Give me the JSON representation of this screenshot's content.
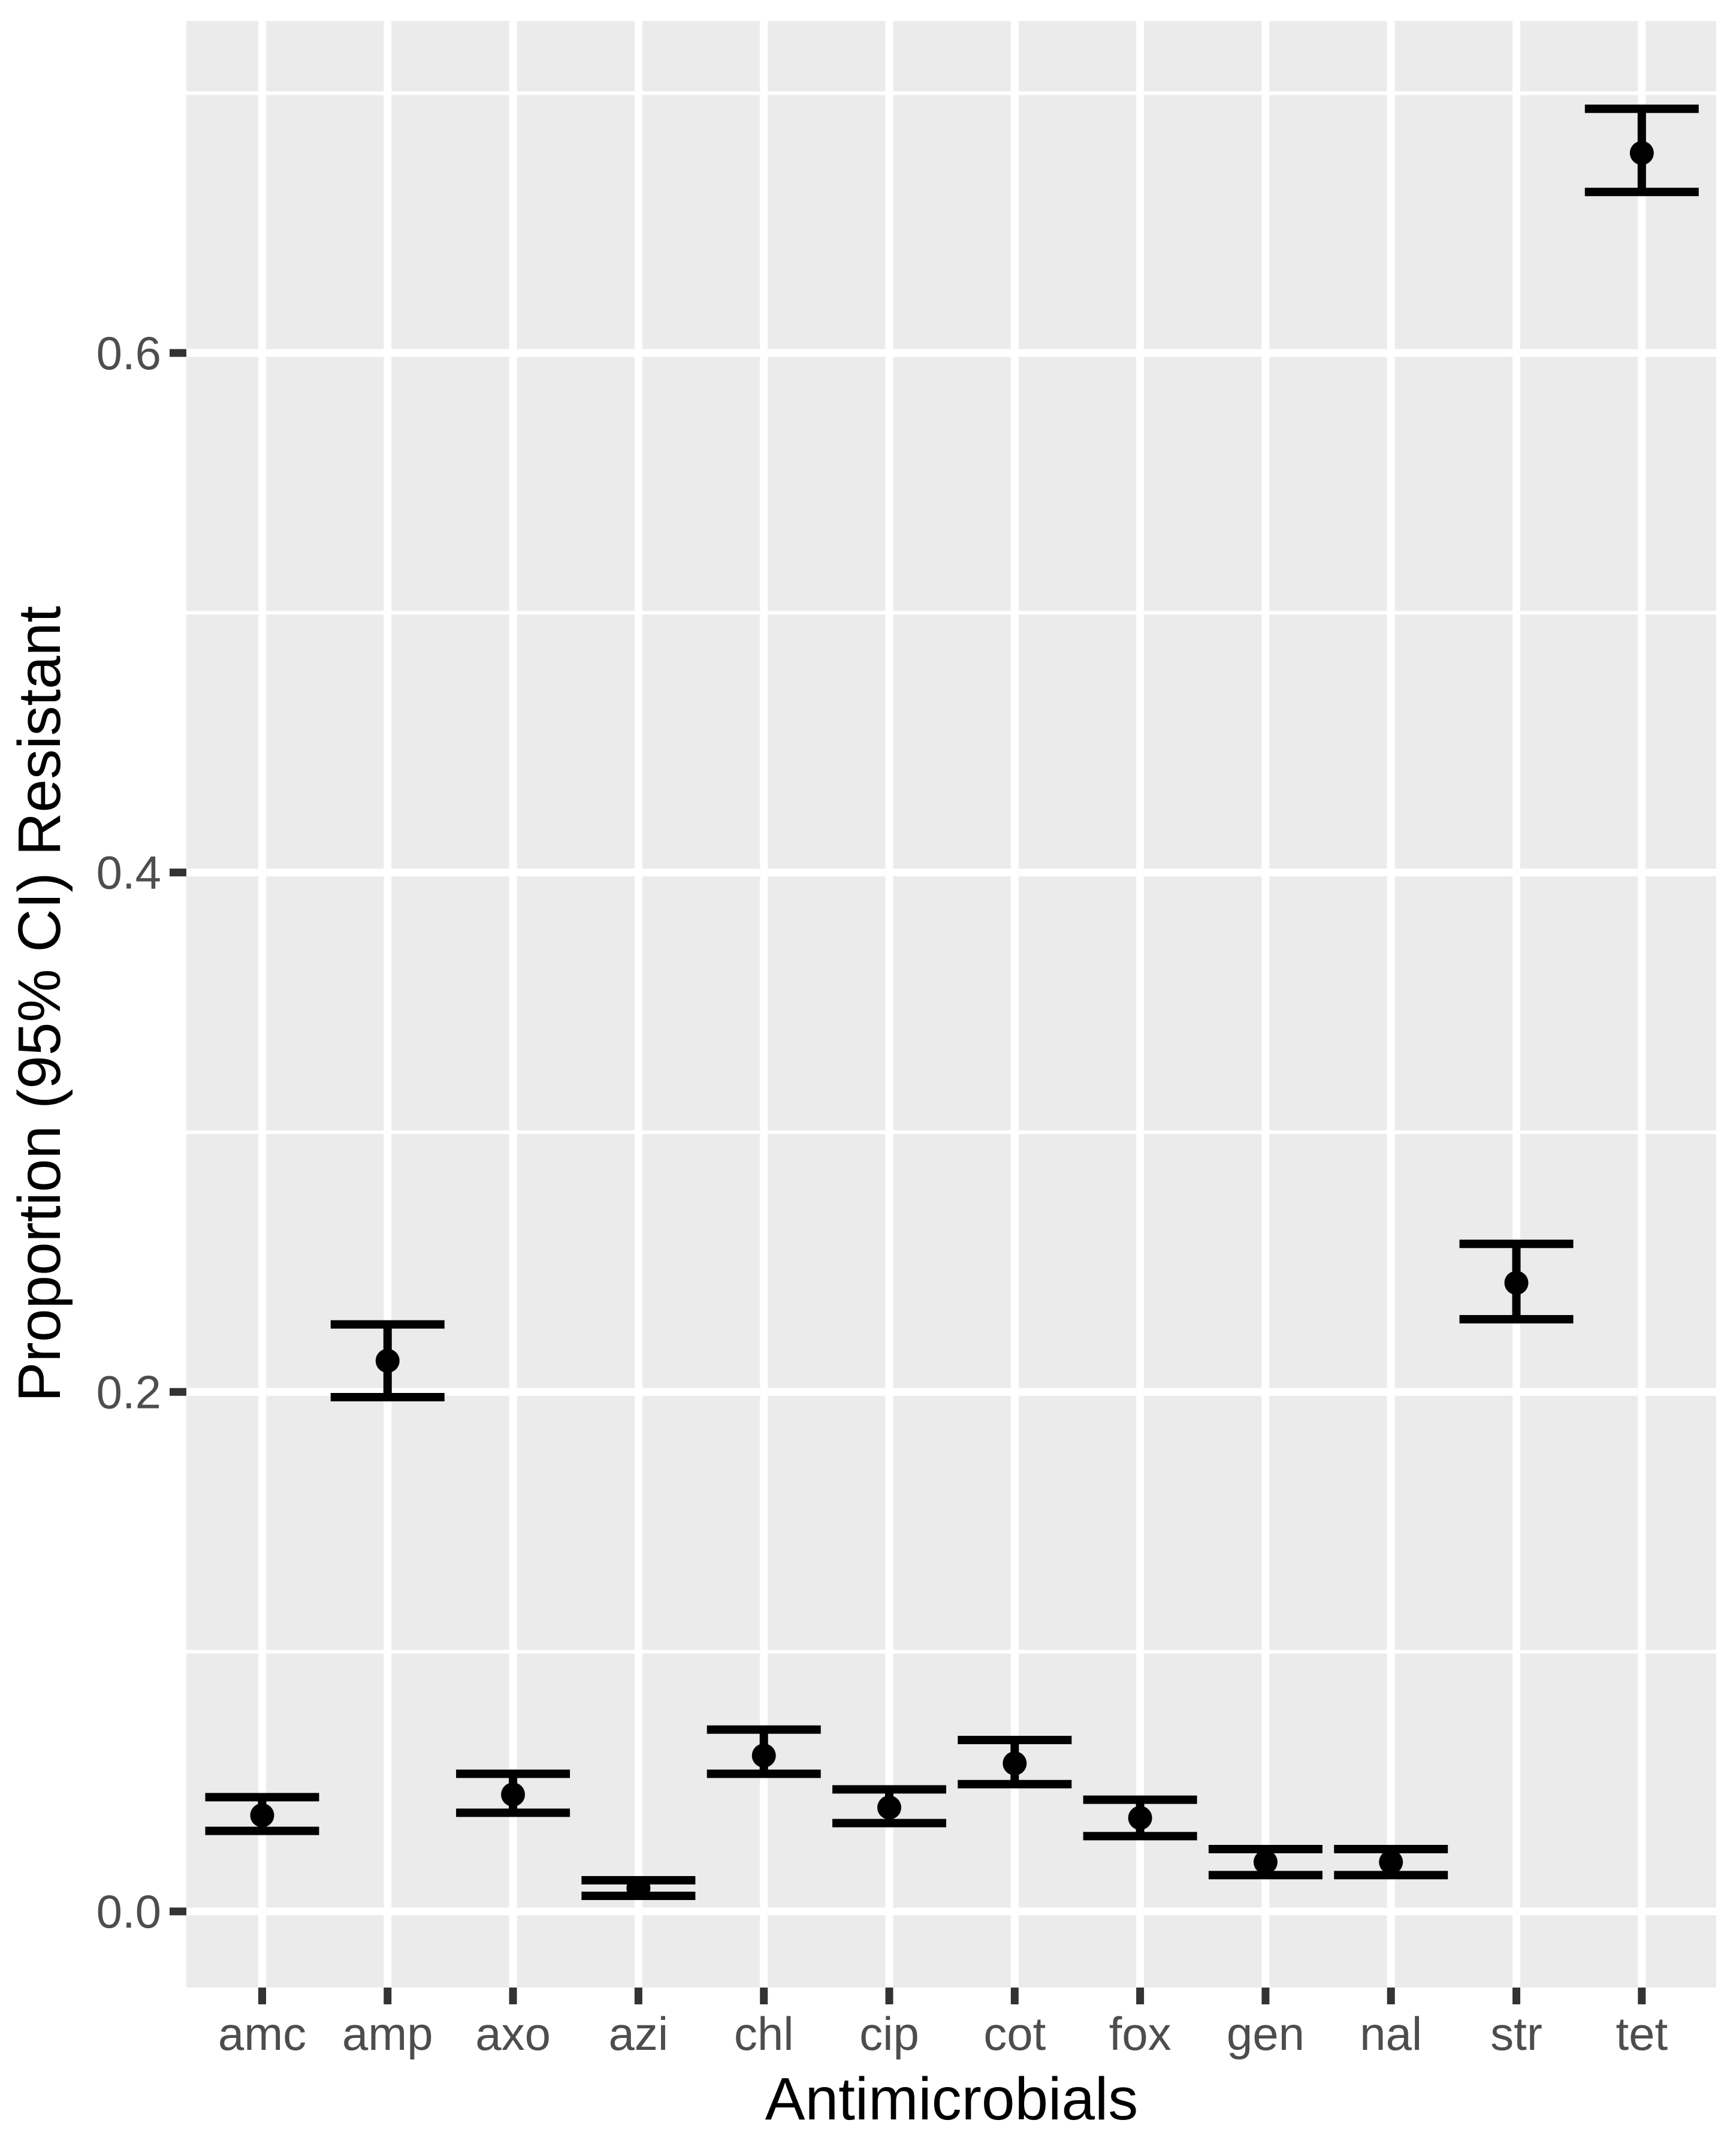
{
  "chart_data": {
    "type": "scatter",
    "subtype": "pointrange-errorbar",
    "title": "",
    "xlabel": "Antimicrobials",
    "ylabel": "Proportion (95% CI) Resistant",
    "categories": [
      "amc",
      "amp",
      "axo",
      "azi",
      "chl",
      "cip",
      "cot",
      "fox",
      "gen",
      "nal",
      "str",
      "tet"
    ],
    "series": [
      {
        "name": "proportion_resistant",
        "values": [
          0.037,
          0.212,
          0.045,
          0.009,
          0.06,
          0.04,
          0.057,
          0.036,
          0.019,
          0.019,
          0.242,
          0.677
        ],
        "ci_low": [
          0.031,
          0.198,
          0.038,
          0.006,
          0.053,
          0.034,
          0.049,
          0.029,
          0.014,
          0.014,
          0.228,
          0.662
        ],
        "ci_high": [
          0.044,
          0.226,
          0.053,
          0.012,
          0.07,
          0.047,
          0.066,
          0.043,
          0.024,
          0.024,
          0.257,
          0.694
        ]
      }
    ],
    "y_ticks": {
      "values": [
        0.0,
        0.2,
        0.4,
        0.6
      ],
      "labels": [
        "0.0",
        "0.2",
        "0.4",
        "0.6"
      ]
    },
    "y_minor_ticks": [
      0.1,
      0.3,
      0.5,
      0.7
    ],
    "ylim": [
      -0.029,
      0.728
    ],
    "grid": "major-and-minor-horizontal, major-vertical-per-category",
    "legend": "none",
    "colors": {
      "panel_background": "#EBEBEB",
      "gridline": "#FFFFFF",
      "point": "#000000",
      "error_bar": "#000000",
      "tick_label": "#4D4D4D",
      "axis_title": "#000000",
      "tick_mark": "#333333",
      "figure_background": "#FFFFFF"
    }
  }
}
